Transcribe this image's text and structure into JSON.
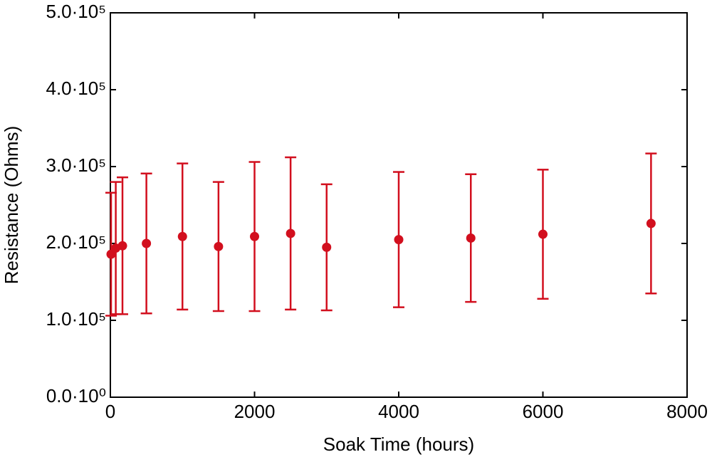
{
  "chart_data": {
    "type": "errorbar-scatter",
    "x_label": "Soak Time (hours)",
    "y_label": "Resistance (Ohms)",
    "x": [
      10,
      75,
      168,
      500,
      1000,
      1500,
      2000,
      2500,
      3000,
      4000,
      5000,
      6000,
      7500
    ],
    "series": [
      {
        "color": "#d20f1e",
        "values": [
          186000,
          194000,
          197000,
          200000,
          209000,
          196000,
          209000,
          213000,
          195000,
          205000,
          207000,
          212000,
          226000
        ],
        "errors": [
          80000,
          86000,
          89000,
          91000,
          95000,
          84000,
          97000,
          99000,
          82000,
          88000,
          83000,
          84000,
          91000
        ]
      }
    ],
    "xlim": [
      0,
      8000
    ],
    "xticks": [
      0,
      2000,
      4000,
      6000,
      8000
    ],
    "ylim": [
      0,
      500000
    ],
    "yticks": [
      {
        "value": 0,
        "label": "0.0·10⁰"
      },
      {
        "value": 100000,
        "label": "1.0·10⁵"
      },
      {
        "value": 200000,
        "label": "2.0·10⁵"
      },
      {
        "value": 300000,
        "label": "3.0·10⁵"
      },
      {
        "value": 400000,
        "label": "4.0·10⁵"
      },
      {
        "value": 500000,
        "label": "5.0·10⁵"
      }
    ],
    "grid": false
  }
}
